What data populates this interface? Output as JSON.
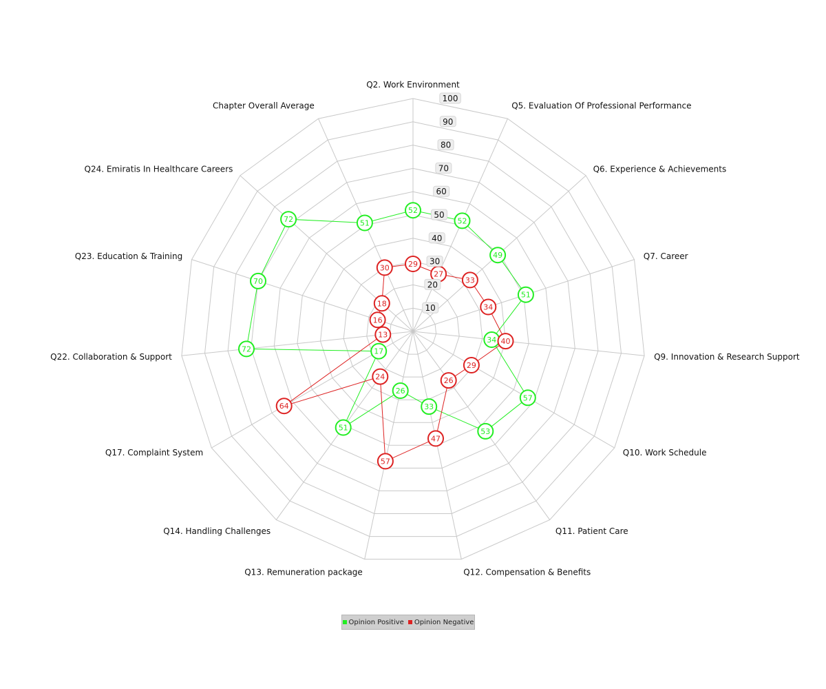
{
  "chart_data": {
    "type": "radar",
    "title": "",
    "categories": [
      "Q2. Work Environment",
      "Q5. Evaluation Of Professional Performance",
      "Q6. Experience & Achievements",
      "Q7. Career",
      "Q9. Innovation & Research Support",
      "Q10. Work Schedule",
      "Q11. Patient Care",
      "Q12. Compensation & Benefits",
      "Q13. Remuneration package",
      "Q14. Handling Challenges",
      "Q17. Complaint System",
      "Q22. Collaboration & Support",
      "Q23. Education & Training",
      "Q24. Emiratis In Healthcare Careers",
      "Chapter Overall Average"
    ],
    "radial_ticks": [
      10,
      20,
      30,
      40,
      50,
      60,
      70,
      80,
      90,
      100
    ],
    "rlim": [
      0,
      100
    ],
    "grid": true,
    "legend_position": "bottom",
    "series": [
      {
        "name": "Opinion Positive",
        "color": "#22ee22",
        "values": [
          52,
          52,
          49,
          51,
          34,
          57,
          53,
          33,
          26,
          51,
          17,
          72,
          70,
          72,
          51
        ]
      },
      {
        "name": "Opinion Negative",
        "color": "#dd2222",
        "values": [
          29,
          27,
          33,
          34,
          40,
          29,
          26,
          47,
          57,
          24,
          64,
          13,
          16,
          18,
          30
        ]
      }
    ]
  }
}
